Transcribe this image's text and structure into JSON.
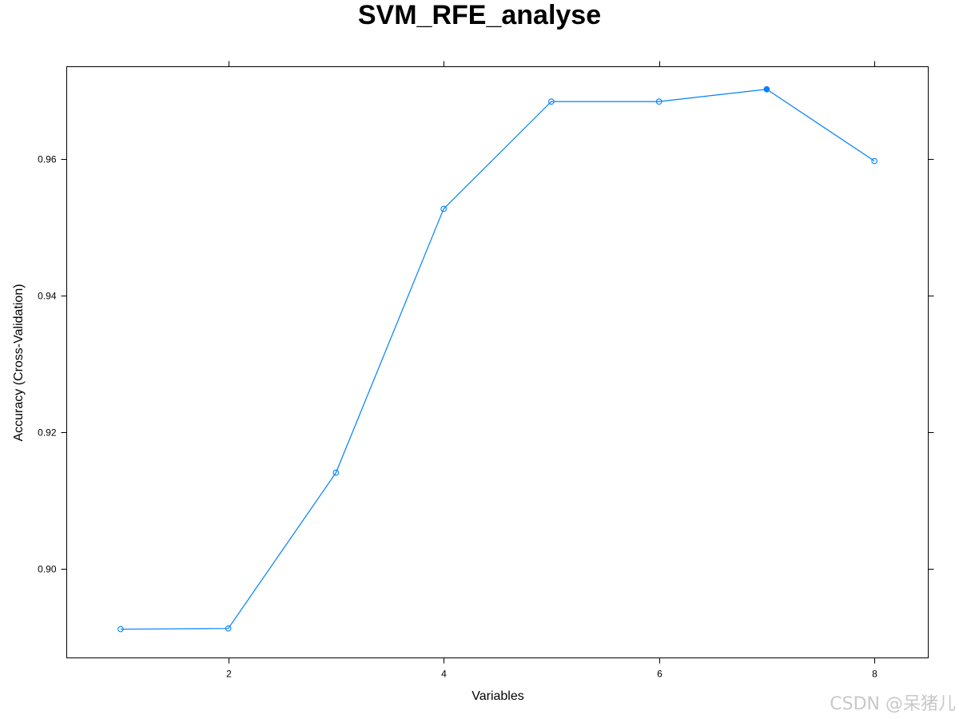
{
  "chart_data": {
    "type": "line",
    "title": "SVM_RFE_analyse",
    "xlabel": "Variables",
    "ylabel": "Accuracy (Cross-Validation)",
    "x": [
      1,
      2,
      3,
      4,
      5,
      6,
      7,
      8
    ],
    "series": [
      {
        "values": [
          0.8912,
          0.8913,
          0.9141,
          0.9527,
          0.9684,
          0.9684,
          0.9702,
          0.9597
        ],
        "color": "#0080ff"
      }
    ],
    "highlight": {
      "x": 7,
      "marker": "filled"
    },
    "x_ticks": [
      2,
      4,
      6,
      8
    ],
    "x_tick_labels": [
      "2",
      "4",
      "6",
      "8"
    ],
    "y_ticks": [
      0.9,
      0.92,
      0.94,
      0.96
    ],
    "y_tick_labels": [
      "0.90",
      "0.92",
      "0.94",
      "0.96"
    ],
    "xlim": [
      0.5,
      8.5
    ],
    "ylim": [
      0.887,
      0.9735
    ],
    "grid": false,
    "legend": "none"
  },
  "watermark": "CSDN @呆猪儿",
  "colors": {
    "line": "#0080ff",
    "axis": "#000000",
    "watermark": "#c8c8c8"
  }
}
